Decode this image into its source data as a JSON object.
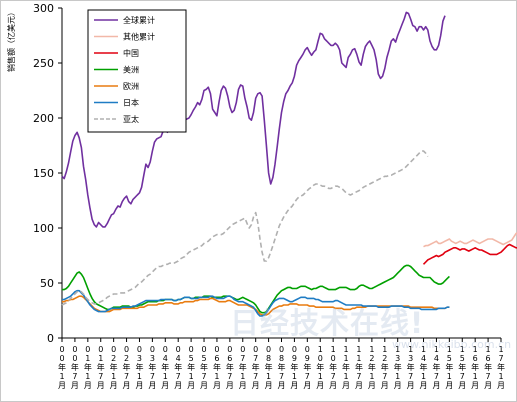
{
  "chart_data": {
    "type": "line",
    "ylabel": "销售额（亿美元）",
    "ylim": [
      0,
      300
    ],
    "yticks": [
      0,
      50,
      100,
      150,
      200,
      250,
      300
    ],
    "grid": false,
    "legend_position": "top-left",
    "x_month_start": "2000-01",
    "x_month_end": "2017-01",
    "x_tick_labels": [
      "00年1月",
      "00年7月",
      "01年1月",
      "01年7月",
      "02年1月",
      "02年7月",
      "03年1月",
      "03年7月",
      "04年1月",
      "04年7月",
      "05年1月",
      "05年7月",
      "06年1月",
      "06年7月",
      "07年1月",
      "07年7月",
      "08年1月",
      "08年7月",
      "09年1月",
      "09年7月",
      "10年1月",
      "10年7月",
      "11年1月",
      "11年7月",
      "12年1月",
      "12年7月",
      "13年1月",
      "13年7月",
      "14年1月",
      "14年7月",
      "15年1月",
      "15年7月",
      "16年1月",
      "16年7月",
      "17年1月"
    ],
    "series": [
      {
        "name": "全球累计",
        "color": "#7030a0",
        "dash": "none",
        "start": "2000-01",
        "values": [
          147,
          145,
          151,
          159,
          169,
          179,
          184,
          187,
          182,
          173,
          156,
          144,
          130,
          118,
          108,
          103,
          101,
          105,
          103,
          101,
          101,
          104,
          108,
          112,
          113,
          117,
          120,
          119,
          124,
          127,
          129,
          124,
          122,
          126,
          128,
          130,
          132,
          137,
          148,
          158,
          155,
          160,
          170,
          178,
          181,
          182,
          183,
          188,
          190,
          187,
          192,
          195,
          196,
          192,
          189,
          196,
          199,
          198,
          199,
          200,
          203,
          207,
          210,
          214,
          212,
          217,
          225,
          226,
          228,
          222,
          208,
          205,
          202,
          215,
          225,
          229,
          227,
          220,
          210,
          205,
          207,
          214,
          226,
          230,
          229,
          218,
          210,
          200,
          198,
          205,
          218,
          222,
          223,
          220,
          198,
          175,
          150,
          140,
          146,
          158,
          174,
          190,
          205,
          215,
          222,
          225,
          229,
          232,
          238,
          248,
          252,
          255,
          258,
          262,
          264,
          260,
          257,
          260,
          262,
          270,
          277,
          276,
          272,
          270,
          268,
          266,
          266,
          268,
          266,
          262,
          250,
          248,
          246,
          255,
          258,
          262,
          263,
          258,
          251,
          248,
          258,
          265,
          268,
          270,
          266,
          262,
          253,
          240,
          236,
          238,
          245,
          255,
          262,
          270,
          272,
          269,
          275,
          280,
          285,
          290,
          296,
          295,
          290,
          284,
          283,
          279,
          283,
          283,
          280,
          283,
          280,
          270,
          265,
          262,
          262,
          266,
          275,
          288,
          293
        ]
      },
      {
        "name": "其他累计",
        "color": "#f2b8a8",
        "dash": "none",
        "start": "2014-01",
        "values": [
          83,
          84,
          84,
          85,
          86,
          87,
          88,
          86,
          86,
          87,
          88,
          89,
          90,
          88,
          87,
          86,
          87,
          88,
          87,
          86,
          86,
          87,
          88,
          89,
          88,
          87,
          86,
          87,
          88,
          89,
          90,
          90,
          90,
          89,
          88,
          87,
          86,
          85,
          86,
          87,
          88,
          89,
          92,
          95,
          96,
          97,
          98,
          99,
          100
        ]
      },
      {
        "name": "中国",
        "color": "#e00010",
        "dash": "none",
        "start": "2014-01",
        "values": [
          67,
          69,
          71,
          72,
          73,
          74,
          75,
          74,
          75,
          76,
          78,
          79,
          80,
          81,
          82,
          82,
          81,
          80,
          81,
          81,
          80,
          79,
          80,
          81,
          82,
          81,
          80,
          80,
          79,
          78,
          77,
          76,
          76,
          76,
          76,
          77,
          78,
          80,
          82,
          84,
          85,
          84,
          83,
          82,
          82,
          84,
          87,
          92,
          95
        ]
      },
      {
        "name": "美洲",
        "color": "#00a000",
        "dash": "none",
        "start": "2000-01",
        "values": [
          44,
          44,
          45,
          47,
          50,
          53,
          56,
          59,
          60,
          58,
          55,
          50,
          45,
          40,
          36,
          33,
          31,
          30,
          29,
          28,
          27,
          26,
          26,
          27,
          28,
          28,
          28,
          28,
          29,
          29,
          29,
          29,
          28,
          28,
          29,
          29,
          30,
          30,
          31,
          32,
          33,
          33,
          33,
          33,
          33,
          34,
          34,
          34,
          35,
          35,
          35,
          35,
          34,
          34,
          35,
          35,
          36,
          37,
          37,
          37,
          36,
          36,
          37,
          37,
          37,
          37,
          38,
          38,
          38,
          38,
          37,
          37,
          37,
          37,
          37,
          38,
          38,
          38,
          38,
          37,
          36,
          35,
          35,
          36,
          37,
          36,
          35,
          34,
          33,
          32,
          30,
          27,
          24,
          23,
          23,
          24,
          27,
          30,
          33,
          36,
          39,
          41,
          43,
          44,
          45,
          46,
          46,
          45,
          45,
          45,
          46,
          47,
          47,
          47,
          46,
          45,
          44,
          45,
          45,
          46,
          47,
          47,
          46,
          45,
          44,
          44,
          44,
          44,
          45,
          46,
          46,
          46,
          46,
          45,
          44,
          44,
          44,
          45,
          47,
          48,
          48,
          47,
          46,
          45,
          45,
          46,
          47,
          48,
          49,
          50,
          51,
          52,
          53,
          54,
          55,
          57,
          59,
          61,
          63,
          65,
          66,
          66,
          65,
          63,
          61,
          59,
          57,
          56,
          55,
          55,
          55,
          55,
          53,
          51,
          50,
          49,
          49,
          50,
          52,
          54,
          56
        ]
      },
      {
        "name": "欧洲",
        "color": "#e97c10",
        "dash": "none",
        "start": "2000-01",
        "values": [
          33,
          33,
          34,
          34,
          35,
          35,
          36,
          37,
          38,
          38,
          37,
          35,
          33,
          31,
          29,
          27,
          26,
          25,
          24,
          24,
          24,
          24,
          24,
          25,
          26,
          26,
          26,
          26,
          27,
          27,
          27,
          27,
          27,
          27,
          27,
          27,
          28,
          28,
          28,
          29,
          30,
          30,
          30,
          30,
          30,
          31,
          31,
          31,
          32,
          32,
          32,
          32,
          31,
          31,
          31,
          32,
          32,
          33,
          33,
          33,
          33,
          33,
          34,
          34,
          35,
          35,
          35,
          35,
          35,
          36,
          36,
          35,
          34,
          33,
          33,
          33,
          33,
          34,
          34,
          33,
          32,
          31,
          30,
          30,
          30,
          30,
          30,
          29,
          28,
          27,
          26,
          24,
          22,
          21,
          21,
          21,
          22,
          24,
          26,
          27,
          28,
          29,
          29,
          30,
          30,
          30,
          31,
          31,
          31,
          31,
          30,
          30,
          30,
          30,
          30,
          29,
          29,
          29,
          28,
          28,
          28,
          28,
          28,
          28,
          28,
          28,
          28,
          27,
          27,
          27,
          27,
          26,
          26,
          26,
          26,
          27,
          27,
          28,
          28,
          28,
          28,
          28,
          29,
          29,
          29,
          29,
          29,
          29,
          29,
          29,
          29,
          29,
          29,
          29,
          29,
          29,
          29,
          29,
          29,
          29,
          29,
          29,
          28,
          28,
          28,
          28,
          28,
          28,
          28,
          28,
          28,
          28,
          28,
          27,
          27,
          27,
          27,
          27,
          27,
          28,
          28
        ]
      },
      {
        "name": "日本",
        "color": "#1f7cc4",
        "dash": "none",
        "start": "2000-01",
        "values": [
          35,
          35,
          36,
          37,
          38,
          40,
          42,
          43,
          43,
          41,
          39,
          36,
          33,
          30,
          28,
          26,
          25,
          24,
          24,
          24,
          24,
          25,
          26,
          27,
          27,
          27,
          27,
          27,
          28,
          28,
          28,
          28,
          28,
          29,
          29,
          30,
          31,
          32,
          33,
          34,
          34,
          34,
          34,
          34,
          34,
          34,
          35,
          35,
          35,
          35,
          35,
          35,
          34,
          34,
          35,
          35,
          36,
          37,
          37,
          37,
          36,
          36,
          36,
          36,
          37,
          37,
          37,
          37,
          37,
          38,
          38,
          37,
          36,
          36,
          36,
          36,
          37,
          38,
          38,
          37,
          35,
          34,
          33,
          33,
          33,
          32,
          31,
          30,
          29,
          28,
          25,
          22,
          20,
          20,
          21,
          23,
          26,
          29,
          32,
          34,
          35,
          36,
          36,
          36,
          35,
          34,
          33,
          33,
          34,
          35,
          36,
          37,
          37,
          37,
          36,
          36,
          36,
          36,
          35,
          35,
          34,
          33,
          33,
          33,
          33,
          33,
          33,
          34,
          34,
          33,
          32,
          31,
          30,
          30,
          30,
          30,
          30,
          30,
          30,
          30,
          29,
          29,
          29,
          29,
          29,
          29,
          29,
          28,
          28,
          28,
          28,
          28,
          28,
          29,
          29,
          29,
          29,
          29,
          29,
          28,
          28,
          28,
          27,
          27,
          27,
          27,
          27,
          26,
          26,
          26,
          26,
          26,
          26,
          26,
          26,
          27,
          27,
          27,
          27,
          28,
          28
        ]
      },
      {
        "name": "亚太",
        "color": "#b0b0b0",
        "dash": "dashed",
        "start": "2000-01",
        "values": [
          30,
          31,
          32,
          34,
          36,
          38,
          40,
          42,
          43,
          42,
          40,
          37,
          35,
          33,
          32,
          31,
          31,
          32,
          33,
          34,
          35,
          37,
          38,
          39,
          40,
          40,
          40,
          41,
          41,
          41,
          42,
          43,
          44,
          45,
          46,
          48,
          50,
          51,
          53,
          55,
          57,
          58,
          60,
          62,
          64,
          65,
          65,
          66,
          67,
          67,
          68,
          68,
          68,
          69,
          70,
          72,
          73,
          74,
          76,
          78,
          79,
          80,
          81,
          82,
          83,
          84,
          86,
          87,
          88,
          90,
          92,
          93,
          94,
          94,
          94,
          95,
          97,
          99,
          101,
          103,
          104,
          105,
          106,
          107,
          108,
          109,
          104,
          100,
          103,
          110,
          114,
          105,
          90,
          78,
          70,
          70,
          73,
          78,
          84,
          90,
          96,
          102,
          106,
          110,
          113,
          116,
          118,
          120,
          123,
          126,
          128,
          129,
          130,
          132,
          134,
          136,
          137,
          139,
          140,
          140,
          139,
          138,
          138,
          137,
          136,
          136,
          137,
          138,
          138,
          137,
          136,
          134,
          132,
          131,
          130,
          131,
          132,
          133,
          134,
          135,
          137,
          138,
          139,
          140,
          141,
          142,
          143,
          144,
          145,
          146,
          147,
          147,
          148,
          148,
          149,
          150,
          151,
          152,
          153,
          154,
          156,
          158,
          160,
          162,
          164,
          166,
          168,
          170,
          170,
          168,
          165
        ]
      }
    ]
  }
}
